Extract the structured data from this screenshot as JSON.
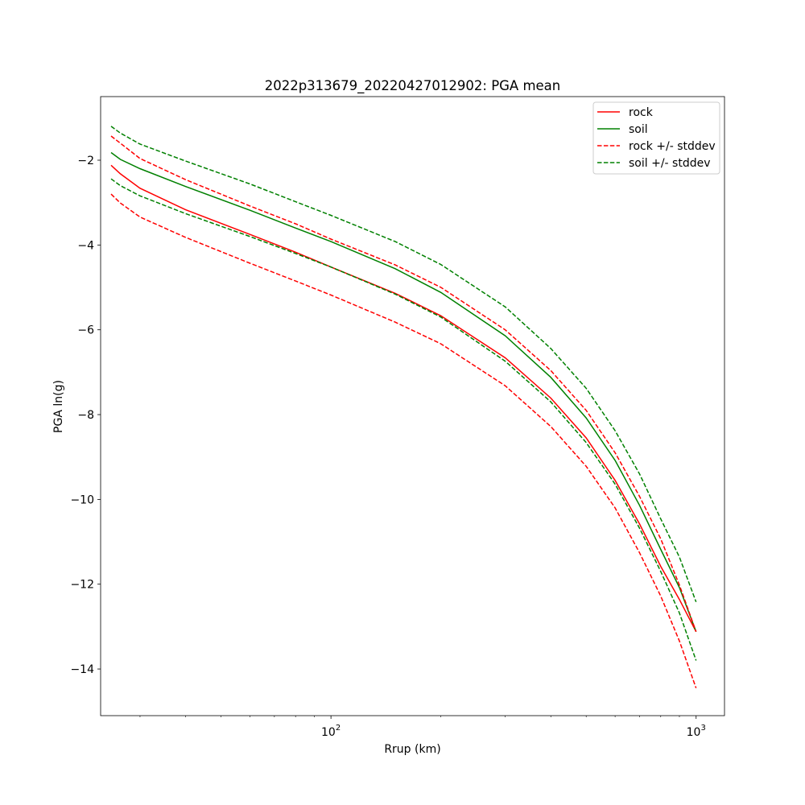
{
  "chart_data": {
    "type": "line",
    "title": "2022p313679_20220427012902: PGA mean",
    "xlabel": "Rrup (km)",
    "ylabel": "PGA ln(g)",
    "xscale": "log",
    "xlim": [
      23.4,
      1196
    ],
    "ylim": [
      -15.1,
      -0.5
    ],
    "yticks": [
      -2,
      -4,
      -6,
      -8,
      -10,
      -12,
      -14
    ],
    "yticklabels": [
      "−2",
      "−4",
      "−6",
      "−8",
      "−10",
      "−12",
      "−14"
    ],
    "xticks": [
      100,
      1000
    ],
    "xticklabels": [
      {
        "base": "10",
        "exp": "2"
      },
      {
        "base": "10",
        "exp": "3"
      }
    ],
    "grid": false,
    "legend": "top-right",
    "x": [
      25,
      26.5,
      30,
      40,
      60,
      80,
      100,
      150,
      200,
      300,
      400,
      500,
      600,
      700,
      800,
      900,
      1000
    ],
    "series": [
      {
        "name": "rock",
        "color": "#ff0000",
        "style": "solid",
        "values": [
          -2.12,
          -2.32,
          -2.66,
          -3.17,
          -3.75,
          -4.17,
          -4.52,
          -5.14,
          -5.67,
          -6.66,
          -7.61,
          -8.55,
          -9.55,
          -10.58,
          -11.58,
          -12.36,
          -13.12
        ]
      },
      {
        "name": "soil",
        "color": "#008000",
        "style": "solid",
        "values": [
          -1.82,
          -1.98,
          -2.2,
          -2.62,
          -3.18,
          -3.6,
          -3.92,
          -4.56,
          -5.12,
          -6.14,
          -7.12,
          -8.08,
          -9.08,
          -10.14,
          -11.18,
          -12.08,
          -13.12
        ]
      },
      {
        "name": "rock +/- stddev",
        "color": "#ff0000",
        "style": "dashed",
        "values": [
          -2.8,
          -3.01,
          -3.34,
          -3.82,
          -4.43,
          -4.85,
          -5.18,
          -5.82,
          -6.33,
          -7.32,
          -8.28,
          -9.22,
          -10.2,
          -11.26,
          -12.28,
          -13.34,
          -14.45
        ]
      },
      {
        "name": null,
        "color": "#ff0000",
        "style": "dashed",
        "values": [
          -1.43,
          -1.6,
          -1.96,
          -2.46,
          -3.08,
          -3.5,
          -3.86,
          -4.47,
          -5.0,
          -6.0,
          -6.96,
          -7.9,
          -8.9,
          -9.93,
          -10.93,
          -12.02,
          -13.12
        ]
      },
      {
        "name": "soil +/- stddev",
        "color": "#008000",
        "style": "dashed",
        "values": [
          -2.44,
          -2.6,
          -2.84,
          -3.26,
          -3.8,
          -4.2,
          -4.52,
          -5.16,
          -5.7,
          -6.74,
          -7.7,
          -8.66,
          -9.64,
          -10.68,
          -11.7,
          -12.68,
          -13.8
        ]
      },
      {
        "name": null,
        "color": "#008000",
        "style": "dashed",
        "values": [
          -1.2,
          -1.36,
          -1.62,
          -2.02,
          -2.56,
          -2.98,
          -3.3,
          -3.92,
          -4.46,
          -5.46,
          -6.44,
          -7.38,
          -8.38,
          -9.4,
          -10.46,
          -11.36,
          -12.42
        ]
      }
    ]
  }
}
